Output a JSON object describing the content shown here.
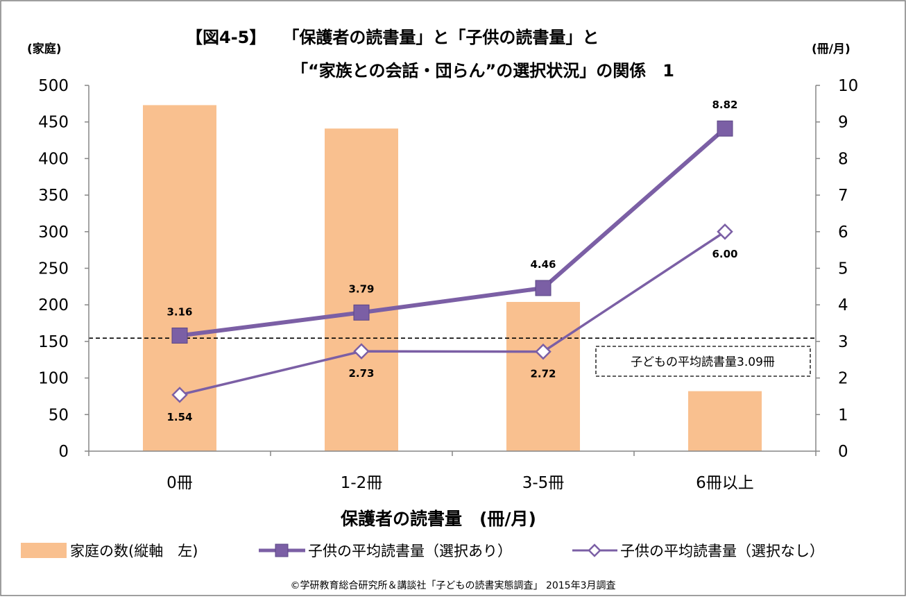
{
  "chart_data": {
    "type": "bar",
    "title_line1": "【図4-5】　　「保護者の読書量」と「子供の読書量」と",
    "title_line2": "「“家族との会話・団らん”の選択状況」の関係　1",
    "ylabel_left": "(家庭)",
    "ylabel_right": "(冊/月)",
    "xlabel": "保護者の読書量　(冊/月)",
    "categories": [
      "0冊",
      "1-2冊",
      "3-5冊",
      "6冊以上"
    ],
    "ylim_left": [
      0,
      500
    ],
    "yticks_left": [
      "0",
      "50",
      "100",
      "150",
      "200",
      "250",
      "300",
      "350",
      "400",
      "450",
      "500"
    ],
    "ylim_right": [
      0,
      10
    ],
    "yticks_right": [
      "0",
      "1",
      "2",
      "3",
      "4",
      "5",
      "6",
      "7",
      "8",
      "9",
      "10"
    ],
    "series": [
      {
        "name": "家庭の数(縦軸　左)",
        "type": "bar",
        "axis": "left",
        "values": [
          473,
          441,
          204,
          82
        ],
        "color": "#F9C08F"
      },
      {
        "name": "子供の平均読書量（選択あり）",
        "type": "line",
        "axis": "right",
        "values": [
          3.16,
          3.79,
          4.46,
          8.82
        ],
        "labels": [
          "3.16",
          "3.79",
          "4.46",
          "8.82"
        ],
        "color": "#7B5FA5",
        "marker": "square"
      },
      {
        "name": "子供の平均読書量（選択なし）",
        "type": "line",
        "axis": "right",
        "values": [
          1.54,
          2.73,
          2.72,
          6.0
        ],
        "labels": [
          "1.54",
          "2.73",
          "2.72",
          "6.00"
        ],
        "color": "#7B5FA5",
        "marker": "diamond"
      }
    ],
    "reference_line": {
      "axis": "right",
      "value": 3.09,
      "label": "子どもの平均読書量3.09冊"
    },
    "grid": false,
    "legend_position": "bottom",
    "source": "©学研教育総合研究所＆講談社「子どもの読書実態調査」 2015年3月調査"
  }
}
